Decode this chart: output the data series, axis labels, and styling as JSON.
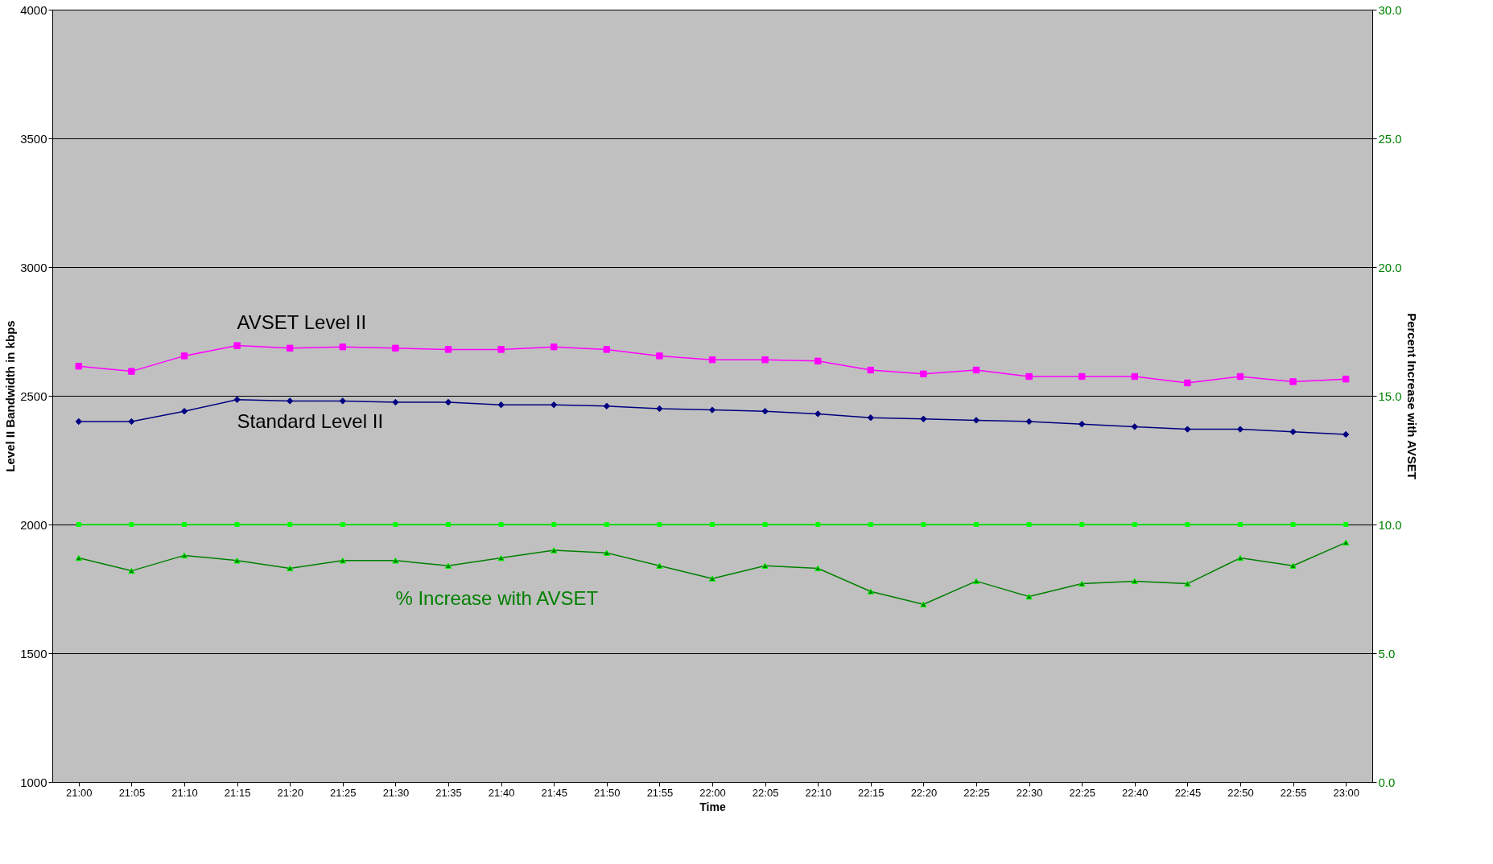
{
  "chart_data": {
    "type": "line",
    "xlabel": "Time",
    "ylabel": "Level II Bandwidth in kbps",
    "y2label": "Percent  Increase with AVSET",
    "categories": [
      "21:00",
      "21:05",
      "21:10",
      "21:15",
      "21:20",
      "21:25",
      "21:30",
      "21:35",
      "21:40",
      "21:45",
      "21:50",
      "21:55",
      "22:00",
      "22:05",
      "22:10",
      "22:15",
      "22:20",
      "22:25",
      "22:30",
      "22:25",
      "22:40",
      "22:45",
      "22:50",
      "22:55",
      "23:00"
    ],
    "series": [
      {
        "name": "AVSET Level II",
        "color": "#ff00ff",
        "marker": "square",
        "values": [
          2615,
          2595,
          2655,
          2695,
          2685,
          2690,
          2685,
          2680,
          2680,
          2690,
          2680,
          2655,
          2640,
          2640,
          2635,
          2600,
          2585,
          2600,
          2575,
          2575,
          2575,
          2550,
          2575,
          2555,
          2565
        ]
      },
      {
        "name": "Standard Level II",
        "color": "#000080",
        "marker": "diamond",
        "values": [
          2400,
          2400,
          2440,
          2485,
          2480,
          2480,
          2475,
          2475,
          2465,
          2465,
          2460,
          2450,
          2445,
          2440,
          2430,
          2415,
          2410,
          2405,
          2400,
          2390,
          2380,
          2370,
          2370,
          2360,
          2350
        ]
      },
      {
        "color": "#00ff00",
        "marker": "square",
        "axis": "y2",
        "values": [
          10,
          10,
          10,
          10,
          10,
          10,
          10,
          10,
          10,
          10,
          10,
          10,
          10,
          10,
          10,
          10,
          10,
          10,
          10,
          10,
          10,
          10,
          10,
          10,
          10
        ]
      },
      {
        "name": "% Increase with AVSET",
        "color": "#008000",
        "marker": "triangle",
        "axis": "y2",
        "values": [
          8.7,
          8.2,
          8.8,
          8.6,
          8.3,
          8.6,
          8.6,
          8.4,
          8.7,
          9.0,
          8.9,
          8.4,
          7.9,
          8.4,
          8.3,
          7.4,
          6.9,
          7.8,
          7.2,
          7.7,
          7.8,
          7.7,
          8.7,
          8.4,
          9.3
        ]
      }
    ],
    "ylim": [
      1000,
      4000
    ],
    "yticks": [
      1000,
      1500,
      2000,
      2500,
      3000,
      3500,
      4000
    ],
    "y2lim": [
      0,
      30
    ],
    "y2ticks": [
      {
        "value": 0,
        "label": "0.0"
      },
      {
        "value": 5,
        "label": "5.0"
      },
      {
        "value": 10,
        "label": "10.0"
      },
      {
        "value": 15,
        "label": "15.0"
      },
      {
        "value": 20,
        "label": "20.0"
      },
      {
        "value": 25,
        "label": "25.0"
      },
      {
        "value": 30,
        "label": "30.0"
      }
    ],
    "grid": "y"
  }
}
